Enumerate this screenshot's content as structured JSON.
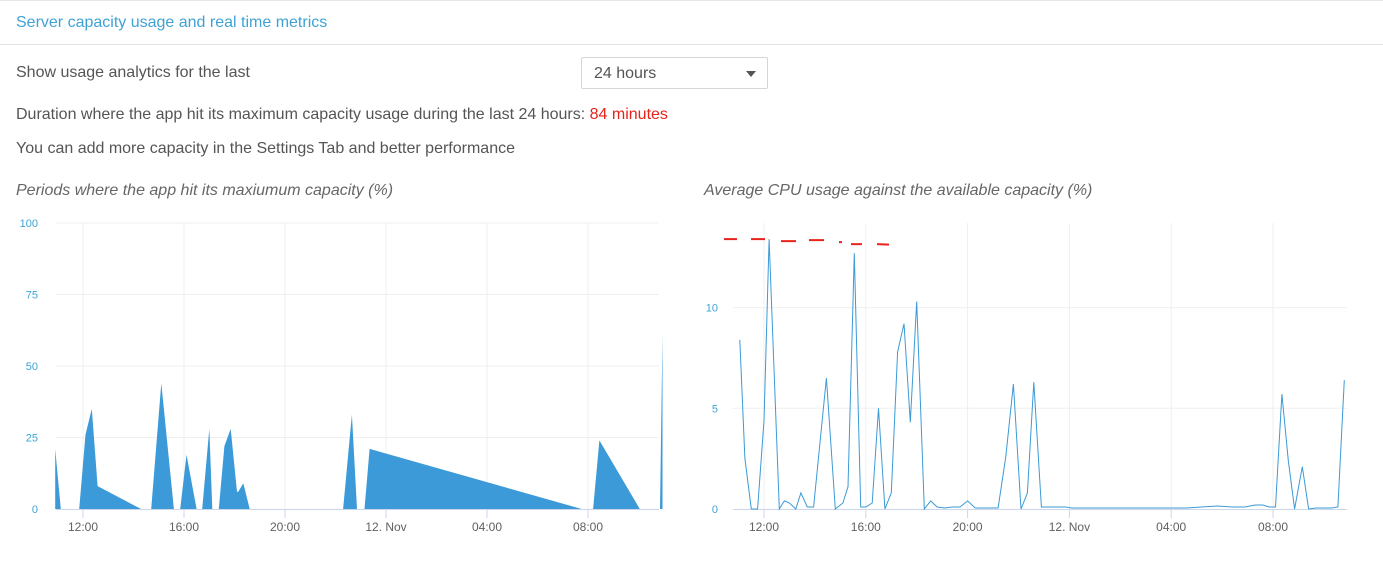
{
  "header": {
    "title": "Server capacity usage and real time metrics"
  },
  "controls": {
    "range_label": "Show usage analytics for the last",
    "range_select": {
      "value": "24 hours"
    }
  },
  "summary": {
    "duration_text": "Duration where the app hit its maximum capacity usage during the last 24 hours: ",
    "duration_value": "84 minutes",
    "advice_text": "You can add more capacity in the Settings Tab and better performance"
  },
  "colors": {
    "accent": "#3ea3d4",
    "series": "#3b9ad7",
    "warning": "#e8231c"
  },
  "chart_data": [
    {
      "type": "area",
      "title": "Periods where the app hit its maxiumum capacity (%)",
      "x_ticks": [
        "12:00",
        "16:00",
        "20:00",
        "12. Nov",
        "04:00",
        "08:00"
      ],
      "y_ticks": [
        "0",
        "25",
        "50",
        "75",
        "100"
      ],
      "ylim": [
        0,
        100
      ],
      "xlim_hours": [
        10.9,
        34.95
      ],
      "series": [
        {
          "x": [
            10.9,
            11.12,
            11.35,
            11.85,
            12.1,
            12.35,
            12.58,
            14.3,
            14.7,
            15.1,
            15.6,
            15.85,
            16.1,
            16.5,
            16.72,
            17.0,
            17.12,
            17.25,
            17.38,
            17.6,
            17.85,
            18.1,
            18.15,
            18.35,
            18.6,
            22.1,
            22.3,
            22.65,
            22.85,
            23.15,
            23.35,
            31.75,
            32.2,
            32.45,
            34.05,
            34.15,
            34.85,
            34.95
          ],
          "y": [
            21,
            0,
            0,
            0,
            26,
            35,
            8,
            0,
            0,
            44,
            0,
            0,
            19,
            0,
            0,
            28,
            0,
            0,
            0,
            22,
            28,
            6,
            6,
            9,
            0,
            0,
            0,
            33,
            0,
            0,
            21,
            0,
            0,
            24,
            0,
            0,
            0,
            61
          ]
        }
      ]
    },
    {
      "type": "line",
      "title": "Average CPU usage against the available capacity (%)",
      "x_ticks": [
        "12:00",
        "16:00",
        "20:00",
        "12. Nov",
        "04:00",
        "08:00"
      ],
      "y_ticks": [
        "0",
        "5",
        "10"
      ],
      "ylim": [
        0,
        14.2
      ],
      "xlim_hours": [
        10.9,
        34.95
      ],
      "series": [
        {
          "x": [
            11.05,
            11.25,
            11.5,
            11.75,
            12.0,
            12.2,
            12.6,
            12.8,
            13.0,
            13.25,
            13.45,
            13.7,
            13.95,
            14.2,
            14.45,
            14.8,
            15.1,
            15.3,
            15.55,
            15.8,
            16.0,
            16.25,
            16.5,
            16.75,
            17.0,
            17.25,
            17.5,
            17.75,
            18.0,
            18.3,
            18.55,
            18.8,
            19.1,
            19.4,
            19.7,
            20.0,
            20.3,
            20.6,
            20.9,
            21.2,
            21.5,
            21.8,
            22.1,
            22.35,
            22.6,
            22.9,
            23.1,
            23.35,
            23.6,
            23.85,
            24.1,
            24.5,
            25.0,
            25.6,
            26.2,
            26.8,
            27.4,
            28.0,
            28.6,
            29.2,
            29.8,
            30.4,
            30.9,
            31.3,
            31.6,
            31.85,
            32.1,
            32.35,
            32.6,
            32.85,
            33.15,
            33.4,
            33.7,
            34.0,
            34.3,
            34.55,
            34.8
          ],
          "y": [
            8.4,
            2.5,
            0.0,
            0.0,
            4.4,
            13.4,
            0.0,
            0.4,
            0.3,
            0.0,
            0.8,
            0.1,
            0.1,
            3.3,
            6.5,
            0.0,
            0.3,
            1.1,
            12.7,
            0.1,
            0.1,
            0.3,
            5.0,
            0.0,
            0.8,
            7.8,
            9.2,
            4.3,
            10.3,
            0.0,
            0.4,
            0.1,
            0.05,
            0.1,
            0.1,
            0.4,
            0.05,
            0.05,
            0.05,
            0.05,
            2.6,
            6.2,
            0.0,
            0.8,
            6.3,
            0.1,
            0.1,
            0.1,
            0.1,
            0.1,
            0.05,
            0.05,
            0.05,
            0.05,
            0.05,
            0.05,
            0.05,
            0.05,
            0.05,
            0.1,
            0.15,
            0.1,
            0.1,
            0.2,
            0.2,
            0.1,
            0.1,
            5.7,
            2.4,
            0.0,
            2.1,
            0.0,
            0.05,
            0.05,
            0.05,
            0.1,
            6.4
          ]
        }
      ],
      "threshold_line": {
        "style": "dashed",
        "color": "#e8231c",
        "y": [
          13.4,
          13.4,
          13.3,
          13.35,
          13.25,
          13.15
        ]
      }
    }
  ]
}
